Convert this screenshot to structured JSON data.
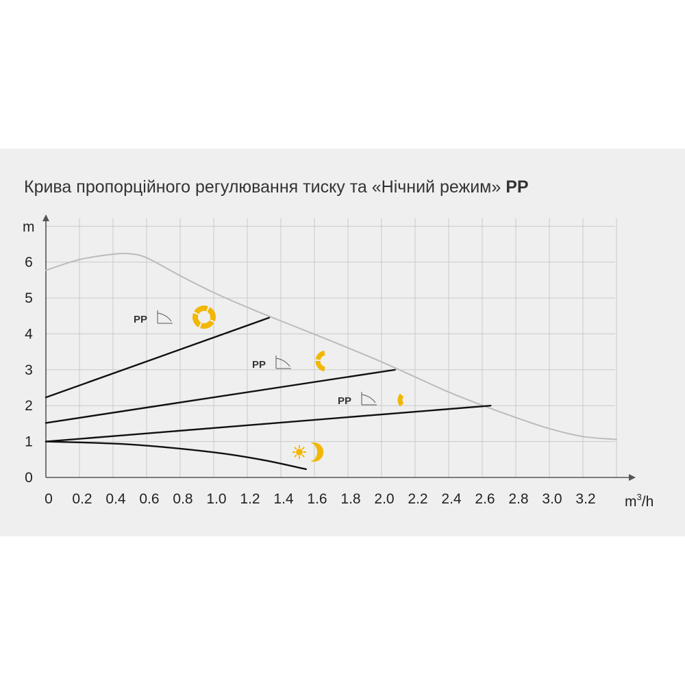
{
  "chart_data": {
    "type": "line",
    "title": "Крива пропорційного регулювання тиску та «Нічний режим»",
    "title_suffix": "PP",
    "ylabel": "m",
    "xlabel": "m³/h",
    "xlim": [
      0,
      3.4
    ],
    "ylim": [
      0,
      7
    ],
    "x_ticks": [
      "0",
      "0.2",
      "0.4",
      "0.6",
      "0.8",
      "1.0",
      "1.2",
      "1.4",
      "1.6",
      "1.8",
      "2.0",
      "2.2",
      "2.4",
      "2.6",
      "2.8",
      "3.0",
      "3.2"
    ],
    "y_ticks": [
      "0",
      "1",
      "2",
      "3",
      "4",
      "5",
      "6"
    ],
    "grid": true,
    "series": [
      {
        "role": "max-curve",
        "color": "#bbbbbb",
        "points": [
          [
            0,
            5.77
          ],
          [
            0.2,
            6.07
          ],
          [
            0.4,
            6.22
          ],
          [
            0.5,
            6.23
          ],
          [
            0.6,
            6.12
          ],
          [
            0.8,
            5.62
          ],
          [
            1.0,
            5.15
          ],
          [
            1.2,
            4.74
          ],
          [
            1.4,
            4.36
          ],
          [
            1.6,
            3.99
          ],
          [
            1.8,
            3.61
          ],
          [
            2.0,
            3.22
          ],
          [
            2.2,
            2.8
          ],
          [
            2.4,
            2.38
          ],
          [
            2.6,
            2.01
          ],
          [
            2.8,
            1.67
          ],
          [
            3.0,
            1.36
          ],
          [
            3.2,
            1.14
          ],
          [
            3.4,
            1.06
          ]
        ]
      },
      {
        "role": "pp-high",
        "color": "#111111",
        "label": "PP",
        "points": [
          [
            0,
            2.23
          ],
          [
            1.33,
            4.45
          ]
        ]
      },
      {
        "role": "pp-mid",
        "color": "#111111",
        "label": "PP",
        "points": [
          [
            0,
            1.52
          ],
          [
            2.08,
            3.0
          ]
        ]
      },
      {
        "role": "pp-low",
        "color": "#111111",
        "label": "PP",
        "points": [
          [
            0,
            1.0
          ],
          [
            2.65,
            2.0
          ]
        ]
      },
      {
        "role": "night-mode",
        "color": "#111111",
        "points": [
          [
            0,
            1.0
          ],
          [
            0.5,
            0.92
          ],
          [
            1.0,
            0.7
          ],
          [
            1.3,
            0.48
          ],
          [
            1.55,
            0.23
          ]
        ]
      }
    ],
    "mode_icons": [
      {
        "name": "speed-high-icon",
        "color": "#f2b705"
      },
      {
        "name": "speed-mid-icon",
        "color": "#f2b705"
      },
      {
        "name": "speed-low-icon",
        "color": "#f2b705"
      },
      {
        "name": "night-mode-icon",
        "color": "#f2b705"
      }
    ]
  }
}
